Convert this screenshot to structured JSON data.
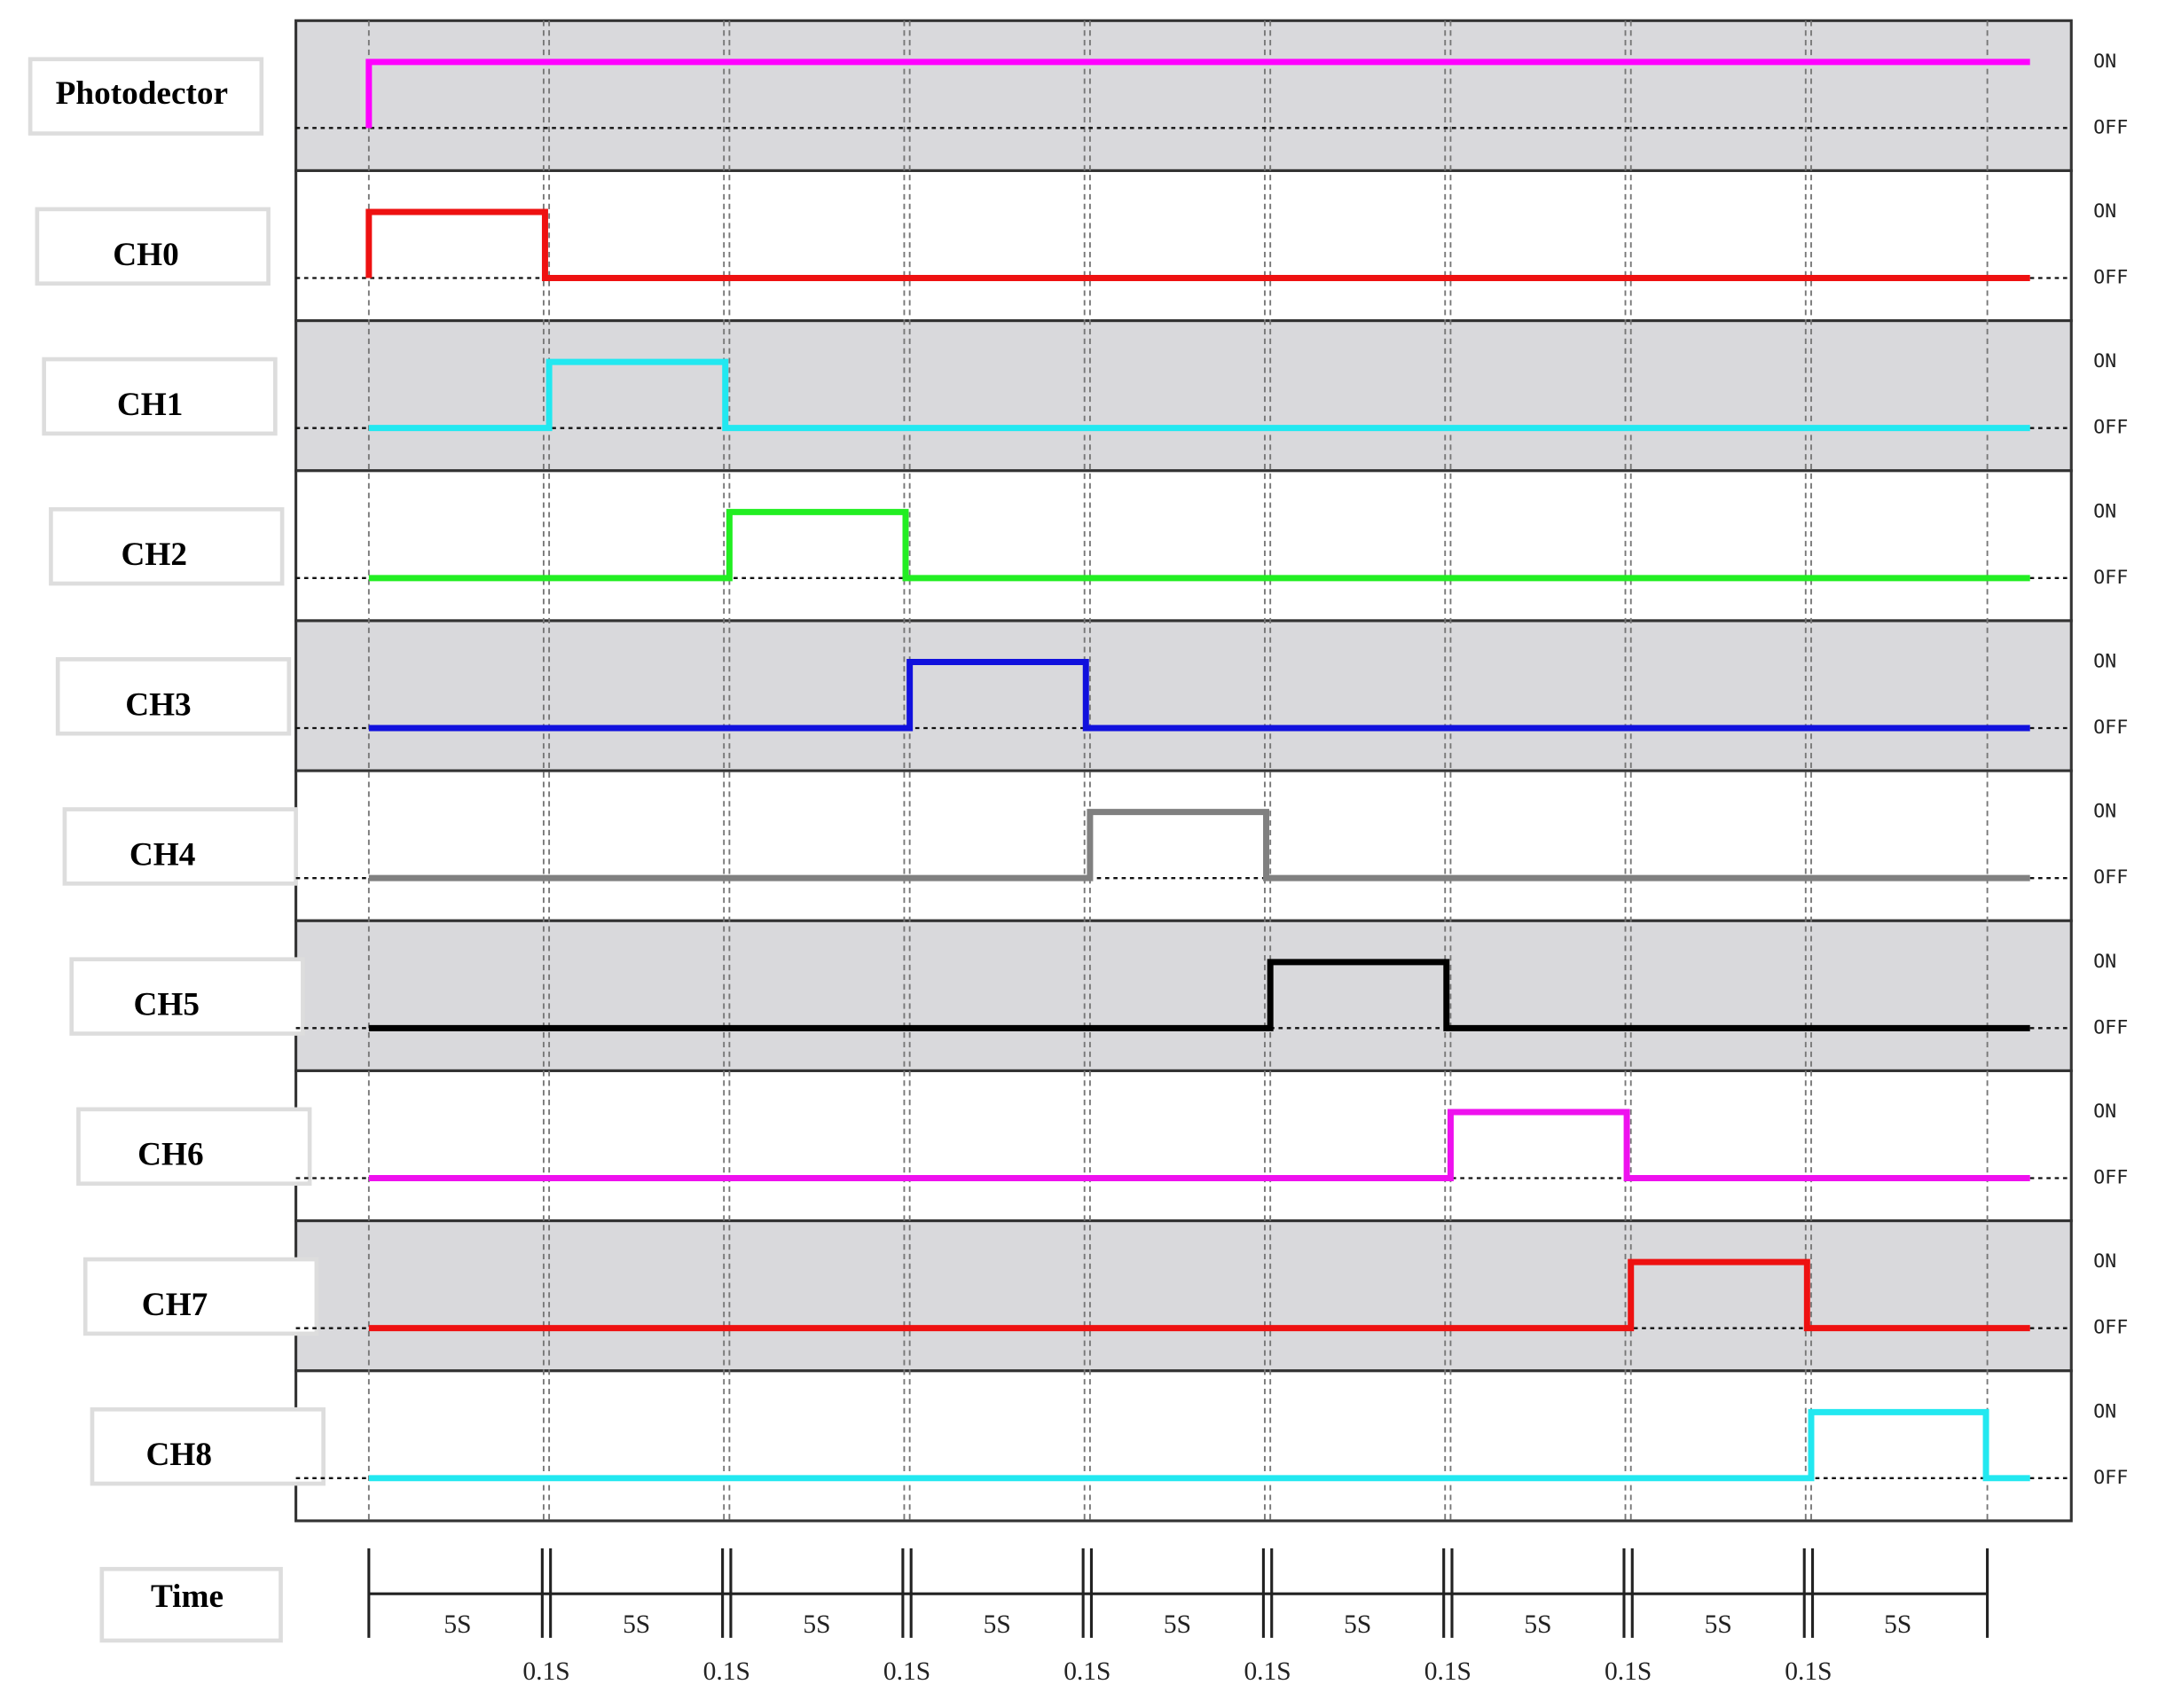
{
  "rows": [
    {
      "label": "Photodector",
      "on": "ON",
      "off": "OFF",
      "color": "#ff00ff"
    },
    {
      "label": "CH0",
      "on": "ON",
      "off": "OFF",
      "color": "#ee1111"
    },
    {
      "label": "CH1",
      "on": "ON",
      "off": "OFF",
      "color": "#22e8f0"
    },
    {
      "label": "CH2",
      "on": "ON",
      "off": "OFF",
      "color": "#22ee22"
    },
    {
      "label": "CH3",
      "on": "ON",
      "off": "OFF",
      "color": "#1111dd"
    },
    {
      "label": "CH4",
      "on": "ON",
      "off": "OFF",
      "color": "#808080"
    },
    {
      "label": "CH5",
      "on": "ON",
      "off": "OFF",
      "color": "#000000"
    },
    {
      "label": "CH6",
      "on": "ON",
      "off": "OFF",
      "color": "#ee11ee"
    },
    {
      "label": "CH7",
      "on": "ON",
      "off": "OFF",
      "color": "#ee1111"
    },
    {
      "label": "CH8",
      "on": "ON",
      "off": "OFF",
      "color": "#22e8f0"
    }
  ],
  "time": {
    "label": "Time",
    "intervals": [
      "5S",
      "5S",
      "5S",
      "5S",
      "5S",
      "5S",
      "5S",
      "5S",
      "5S"
    ],
    "gaps": [
      "0.1S",
      "0.1S",
      "0.1S",
      "0.1S",
      "0.1S",
      "0.1S",
      "0.1S",
      "0.1S"
    ]
  }
}
